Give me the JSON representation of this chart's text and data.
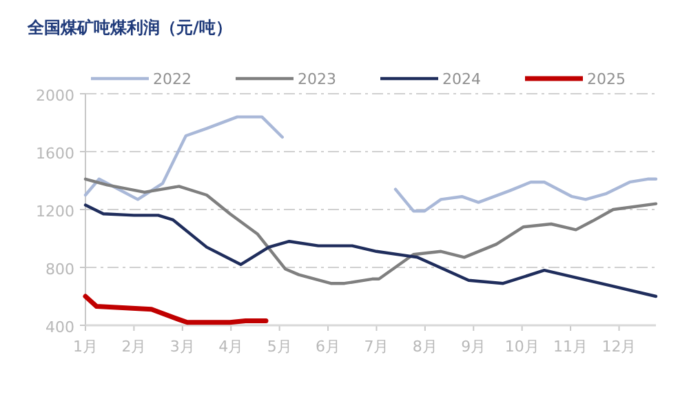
{
  "chart_data": {
    "type": "line",
    "title": "全国煤矿吨煤利润（元/吨）",
    "xlim": [
      1,
      12.76
    ],
    "xticks": [
      {
        "value": 1,
        "label": "1月"
      },
      {
        "value": 2,
        "label": "2月"
      },
      {
        "value": 3,
        "label": "3月"
      },
      {
        "value": 4,
        "label": "4月"
      },
      {
        "value": 5,
        "label": "5月"
      },
      {
        "value": 6,
        "label": "6月"
      },
      {
        "value": 7,
        "label": "7月"
      },
      {
        "value": 8,
        "label": "8月"
      },
      {
        "value": 9,
        "label": "9月"
      },
      {
        "value": 10,
        "label": "10月"
      },
      {
        "value": 11,
        "label": "11月"
      },
      {
        "value": 12,
        "label": "12月"
      }
    ],
    "ylim": [
      400,
      2000
    ],
    "yticks": [
      400,
      800,
      1200,
      1600,
      2000
    ],
    "grid": "y",
    "legend": "top",
    "series": [
      {
        "name": "2022",
        "color": "#a9b8d8",
        "x": [
          1,
          1.28,
          2.08,
          2.59,
          3.07,
          3.5,
          4.13,
          4.64,
          5.06,
          7.39,
          7.76,
          7.99,
          8.33,
          8.76,
          9.1,
          9.75,
          10.18,
          10.46,
          11.03,
          11.31,
          11.74,
          12.22,
          12.59,
          12.76
        ],
        "values": [
          1300,
          1410,
          1270,
          1380,
          1710,
          1760,
          1840,
          1840,
          1700,
          1340,
          1190,
          1190,
          1270,
          1290,
          1250,
          1330,
          1390,
          1390,
          1290,
          1270,
          1310,
          1390,
          1410,
          1410
        ]
      },
      {
        "name": "2023",
        "color": "#7f7f7f",
        "x": [
          1,
          1.45,
          2.22,
          2.93,
          3.5,
          3.98,
          4.55,
          5.12,
          5.4,
          6.06,
          6.34,
          6.91,
          7.05,
          7.76,
          8.33,
          8.81,
          9.47,
          10.03,
          10.6,
          11.11,
          11.45,
          11.88,
          12.76
        ],
        "values": [
          1410,
          1370,
          1320,
          1360,
          1300,
          1170,
          1030,
          790,
          750,
          690,
          690,
          720,
          720,
          890,
          910,
          870,
          960,
          1080,
          1100,
          1060,
          1120,
          1200,
          1240
        ]
      },
      {
        "name": "2024",
        "color": "#1f2d5c",
        "x": [
          1,
          1.37,
          2,
          2.5,
          2.8,
          3.5,
          4.2,
          4.78,
          5.2,
          5.8,
          6.5,
          7,
          7.85,
          8.9,
          9.61,
          10.46,
          11.88,
          12.76
        ],
        "values": [
          1230,
          1170,
          1160,
          1160,
          1130,
          940,
          820,
          940,
          980,
          950,
          950,
          910,
          870,
          710,
          690,
          780,
          670,
          600
        ]
      },
      {
        "name": "2025",
        "color": "#c00000",
        "x": [
          1,
          1.23,
          2.36,
          2.93,
          3.1,
          3.98,
          4.3,
          4.72
        ],
        "values": [
          600,
          530,
          510,
          440,
          420,
          420,
          430,
          430
        ]
      }
    ]
  }
}
